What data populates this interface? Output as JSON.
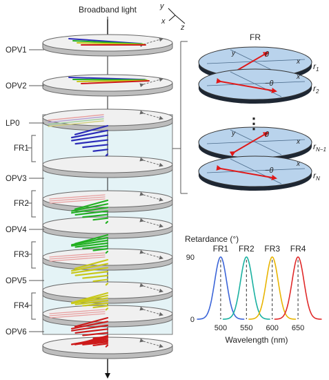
{
  "title": "Broadband light",
  "axes": {
    "y": "y",
    "x": "x",
    "z": "z"
  },
  "stack_labels": [
    "OPV1",
    "OPV2",
    "LP0",
    "FR1",
    "OPV3",
    "FR2",
    "OPV4",
    "FR3",
    "OPV5",
    "FR4",
    "OPV6"
  ],
  "fr_panel": {
    "title": "FR",
    "plate_labels": [
      "r1",
      "r2",
      "rN-1",
      "rN"
    ],
    "plate_labels_main": [
      "r",
      "r",
      "r",
      "r"
    ],
    "plate_labels_sub": [
      "1",
      "2",
      "N−1",
      "N"
    ],
    "angle_pos": "θ",
    "angle_neg": "−θ",
    "axis_x": "x",
    "axis_y": "y",
    "ellipsis": "⋮"
  },
  "colors": {
    "blue": "#2a2ab8",
    "green": "#22b022",
    "yellow": "#c8c81a",
    "red": "#cc1a1a",
    "pink": "#e8a0a0",
    "cyl_fill": "#e4f3f6",
    "disc_top": "#f0f0f0",
    "plate_blue": "#b9d3ec",
    "plate_dark": "#1e2733"
  },
  "chart_data": {
    "type": "line",
    "title": "",
    "ylabel": "Retardance (°)",
    "xlabel": "Wavelength (nm)",
    "xlim": [
      460,
      690
    ],
    "ylim": [
      0,
      110
    ],
    "x_ticks": [
      500,
      550,
      600,
      650
    ],
    "y_ticks": [
      0,
      90
    ],
    "series": [
      {
        "name": "FR1",
        "color": "#3a64d8",
        "center": 500,
        "peak": 90,
        "halfwidth": 18
      },
      {
        "name": "FR2",
        "color": "#18b0a0",
        "center": 550,
        "peak": 90,
        "halfwidth": 18
      },
      {
        "name": "FR3",
        "color": "#e8b400",
        "center": 600,
        "peak": 90,
        "halfwidth": 18
      },
      {
        "name": "FR4",
        "color": "#e02828",
        "center": 650,
        "peak": 90,
        "halfwidth": 18
      }
    ]
  }
}
